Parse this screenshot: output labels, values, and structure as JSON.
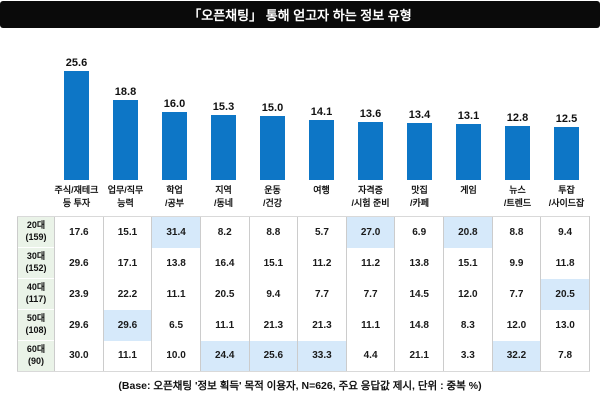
{
  "title": "「오픈채팅」 통해 얻고자 하는 정보 유형",
  "footer_note": "(Base: 오픈채팅 '정보 획득' 목적 이용자, N=626, 주요 응답값 제시, 단위 : 중복 %)",
  "colors": {
    "bar": "#0d76c6",
    "title_bg": "#0a0a0a",
    "title_text": "#ffffff",
    "row_header_bg": "#eaf3e8",
    "cell_highlight": "#d6e9fa",
    "table_border": "#cccccc"
  },
  "chart_data": {
    "type": "bar",
    "title": "「오픈채팅」 통해 얻고자 하는 정보 유형",
    "categories": [
      "주식/재테크\n등 투자",
      "업무/직무\n능력",
      "학업\n/공부",
      "지역\n/동네",
      "운동\n/건강",
      "여행",
      "자격증\n/시험 준비",
      "맛집\n/카페",
      "게임",
      "뉴스\n/트렌드",
      "투잡\n/사이드잡"
    ],
    "values": [
      25.6,
      18.8,
      16.0,
      15.3,
      15.0,
      14.1,
      13.6,
      13.4,
      13.1,
      12.8,
      12.5
    ],
    "value_labels": [
      "25.6",
      "18.8",
      "16.0",
      "15.3",
      "15.0",
      "14.1",
      "13.6",
      "13.4",
      "13.1",
      "12.8",
      "12.5"
    ],
    "xlabel": "",
    "ylabel": "",
    "ylim": [
      0,
      28
    ],
    "grid": false,
    "legend": false,
    "unit": "중복 %"
  },
  "table": {
    "rows": [
      {
        "age_group": "20대",
        "base": "(159)",
        "values": [
          "17.6",
          "15.1",
          "31.4",
          "8.2",
          "8.8",
          "5.7",
          "27.0",
          "6.9",
          "20.8",
          "8.8",
          "9.4"
        ],
        "highlighted": [
          2,
          6,
          8
        ]
      },
      {
        "age_group": "30대",
        "base": "(152)",
        "values": [
          "29.6",
          "17.1",
          "13.8",
          "16.4",
          "15.1",
          "11.2",
          "11.2",
          "13.8",
          "15.1",
          "9.9",
          "11.8"
        ],
        "highlighted": []
      },
      {
        "age_group": "40대",
        "base": "(117)",
        "values": [
          "23.9",
          "22.2",
          "11.1",
          "20.5",
          "9.4",
          "7.7",
          "7.7",
          "14.5",
          "12.0",
          "7.7",
          "20.5"
        ],
        "highlighted": [
          10
        ]
      },
      {
        "age_group": "50대",
        "base": "(108)",
        "values": [
          "29.6",
          "29.6",
          "6.5",
          "11.1",
          "21.3",
          "21.3",
          "11.1",
          "14.8",
          "8.3",
          "12.0",
          "13.0"
        ],
        "highlighted": [
          1
        ]
      },
      {
        "age_group": "60대",
        "base": "(90)",
        "values": [
          "30.0",
          "11.1",
          "10.0",
          "24.4",
          "25.6",
          "33.3",
          "4.4",
          "21.1",
          "3.3",
          "32.2",
          "7.8"
        ],
        "highlighted": [
          3,
          4,
          5,
          9
        ]
      }
    ]
  }
}
